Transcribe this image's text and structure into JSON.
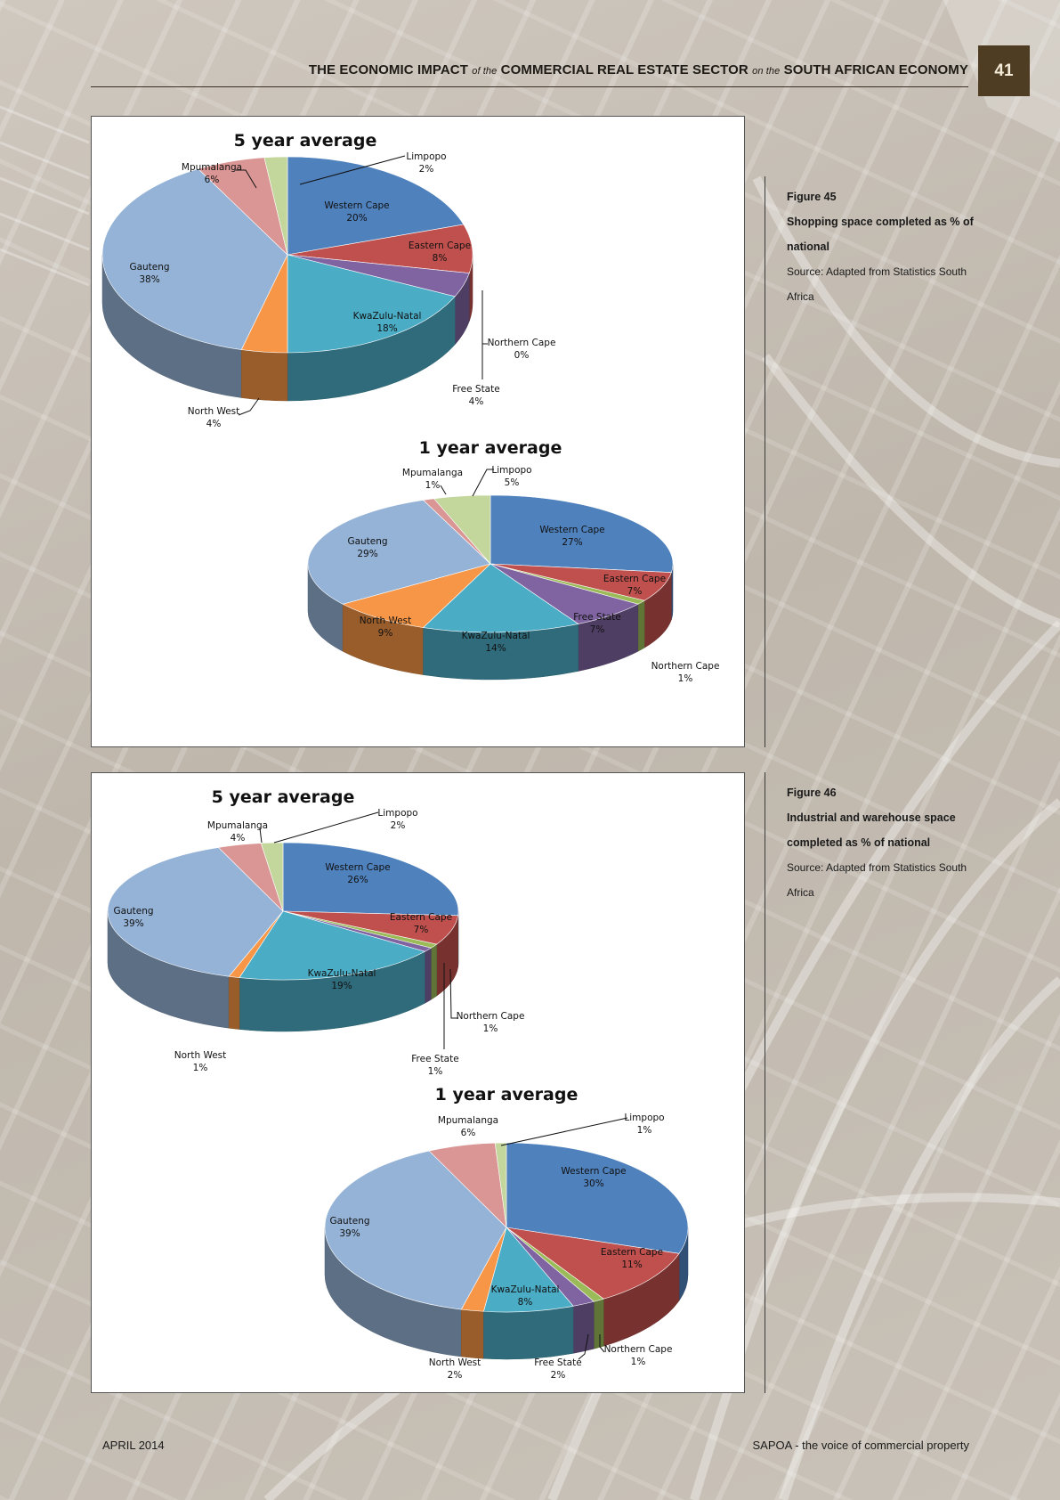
{
  "header": {
    "part1": "THE ECONOMIC IMPACT",
    "of_the": "of the",
    "part2": "COMMERCIAL REAL ESTATE SECTOR",
    "on_the": "on the",
    "part3": "SOUTH AFRICAN ECONOMY",
    "page_number": "41"
  },
  "figure45": {
    "number": "Figure 45",
    "description": "Shopping space completed as % of national",
    "source": "Source: Adapted from Statistics South Africa"
  },
  "figure46": {
    "number": "Figure 46",
    "description": "Industrial and warehouse space completed as % of national",
    "source": "Source: Adapted from Statistics South Africa"
  },
  "footer": {
    "date": "APRIL 2014",
    "tagline": "SAPOA - the voice of commercial property"
  },
  "colors": {
    "Western Cape": "#4f81bd",
    "Eastern Cape": "#c0504d",
    "Northern Cape": "#9bbb59",
    "Free State": "#8064a2",
    "KwaZulu-Natal": "#4bacc6",
    "North West": "#f79646",
    "Gauteng": "#95b3d7",
    "Mpumalanga": "#d99694",
    "Limpopo": "#c3d69b",
    "accent": "#4e3d22"
  },
  "chart_data": [
    {
      "type": "pie",
      "figure": "Figure 45",
      "title": "5 year average",
      "categories": [
        "Western Cape",
        "Eastern Cape",
        "Northern Cape",
        "Free State",
        "KwaZulu-Natal",
        "North West",
        "Gauteng",
        "Mpumalanga",
        "Limpopo"
      ],
      "values": [
        20,
        8,
        0,
        4,
        18,
        4,
        38,
        6,
        2
      ],
      "labels": [
        "20%",
        "8%",
        "0%",
        "4%",
        "18%",
        "4%",
        "38%",
        "6%",
        "2%"
      ]
    },
    {
      "type": "pie",
      "figure": "Figure 45",
      "title": "1 year average",
      "categories": [
        "Western Cape",
        "Eastern Cape",
        "Northern Cape",
        "Free State",
        "KwaZulu-Natal",
        "North West",
        "Gauteng",
        "Mpumalanga",
        "Limpopo"
      ],
      "values": [
        27,
        7,
        1,
        7,
        14,
        9,
        29,
        1,
        5
      ],
      "labels": [
        "27%",
        "7%",
        "1%",
        "7%",
        "14%",
        "9%",
        "29%",
        "1%",
        "5%"
      ]
    },
    {
      "type": "pie",
      "figure": "Figure 46",
      "title": "5 year average",
      "categories": [
        "Western Cape",
        "Eastern Cape",
        "Northern Cape",
        "Free State",
        "KwaZulu-Natal",
        "North West",
        "Gauteng",
        "Mpumalanga",
        "Limpopo"
      ],
      "values": [
        26,
        7,
        1,
        1,
        19,
        1,
        39,
        4,
        2
      ],
      "labels": [
        "26%",
        "7%",
        "1%",
        "1%",
        "19%",
        "1%",
        "39%",
        "4%",
        "2%"
      ]
    },
    {
      "type": "pie",
      "figure": "Figure 46",
      "title": "1 year average",
      "categories": [
        "Western Cape",
        "Eastern Cape",
        "Northern Cape",
        "Free State",
        "KwaZulu-Natal",
        "North West",
        "Gauteng",
        "Mpumalanga",
        "Limpopo"
      ],
      "values": [
        30,
        11,
        1,
        2,
        8,
        2,
        39,
        6,
        1
      ],
      "labels": [
        "30%",
        "11%",
        "1%",
        "2%",
        "8%",
        "2%",
        "39%",
        "6%",
        "1%"
      ]
    }
  ]
}
